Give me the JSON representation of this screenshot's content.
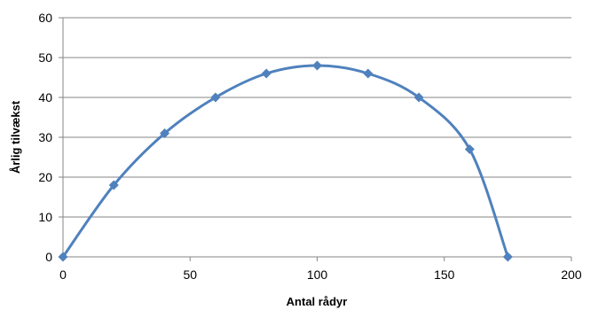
{
  "chart_data": {
    "type": "scatter",
    "title": "",
    "xlabel": "Antal rådyr",
    "ylabel": "Årlig tilvækst",
    "xlim": [
      0,
      200
    ],
    "ylim": [
      0,
      60
    ],
    "xticks": [
      0,
      50,
      100,
      150,
      200
    ],
    "yticks": [
      0,
      10,
      20,
      30,
      40,
      50,
      60
    ],
    "grid": "horizontal",
    "legend": "none",
    "smooth": true,
    "marker": "diamond",
    "series": [
      {
        "color": "#4f81bd",
        "x": [
          0,
          20,
          40,
          60,
          80,
          100,
          120,
          140,
          160,
          175
        ],
        "y": [
          0,
          18,
          31,
          40,
          46,
          48,
          46,
          40,
          27,
          0
        ]
      }
    ]
  }
}
